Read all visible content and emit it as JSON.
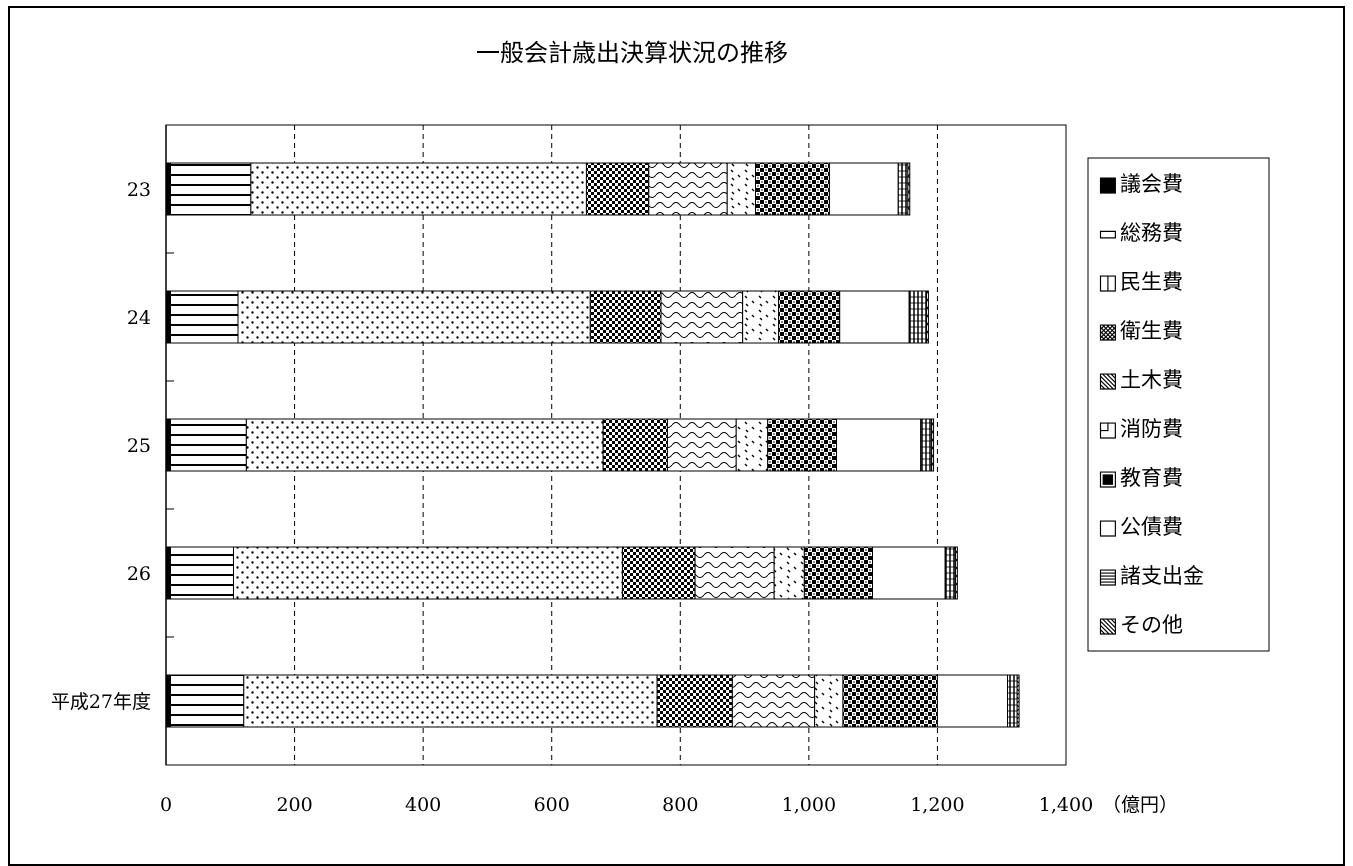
{
  "chart_data": {
    "type": "bar",
    "orientation": "horizontal",
    "stacked": true,
    "title": "一般会計歳出決算状況の推移",
    "xunit": "（億円）",
    "xlim": [
      0,
      1400
    ],
    "xticks": [
      "0",
      "200",
      "400",
      "600",
      "800",
      "1,000",
      "1,200",
      "1,400"
    ],
    "xtick_values": [
      0,
      200,
      400,
      600,
      800,
      1000,
      1200,
      1400
    ],
    "grid": "vertical dashed",
    "legend_position": "right",
    "categories": [
      "23",
      "24",
      "25",
      "26",
      "平成27年度"
    ],
    "series": [
      {
        "name": "議会費",
        "pattern": "solid",
        "values": [
          7,
          7,
          7,
          7,
          7
        ]
      },
      {
        "name": "総務費",
        "pattern": "hlines",
        "values": [
          125,
          105,
          118,
          98,
          114
        ]
      },
      {
        "name": "民生費",
        "pattern": "dots",
        "values": [
          522,
          548,
          555,
          605,
          643
        ]
      },
      {
        "name": "衛生費",
        "pattern": "checker",
        "values": [
          97,
          110,
          100,
          113,
          117
        ]
      },
      {
        "name": "土木費",
        "pattern": "wave",
        "values": [
          122,
          127,
          107,
          123,
          128
        ]
      },
      {
        "name": "消防費",
        "pattern": "sparse",
        "values": [
          44,
          56,
          49,
          47,
          44
        ]
      },
      {
        "name": "教育費",
        "pattern": "checker2",
        "values": [
          115,
          95,
          107,
          106,
          147
        ]
      },
      {
        "name": "公債費",
        "pattern": "blank",
        "values": [
          107,
          108,
          131,
          113,
          109
        ]
      },
      {
        "name": "諸支出金",
        "pattern": "vlines",
        "values": [
          15,
          27,
          17,
          16,
          15
        ]
      },
      {
        "name": "その他",
        "pattern": "zigzag",
        "values": [
          3,
          3,
          3,
          3,
          3
        ]
      }
    ]
  },
  "legend_items": [
    {
      "marker": "■",
      "label": "議会費"
    },
    {
      "marker": "▭",
      "label": "総務費"
    },
    {
      "marker": "◫",
      "label": "民生費"
    },
    {
      "marker": "▩",
      "label": "衛生費"
    },
    {
      "marker": "▧",
      "label": "土木費"
    },
    {
      "marker": "◰",
      "label": "消防費"
    },
    {
      "marker": "▣",
      "label": "教育費"
    },
    {
      "marker": "□",
      "label": "公債費"
    },
    {
      "marker": "▤",
      "label": "諸支出金"
    },
    {
      "marker": "▧",
      "label": "その他"
    }
  ]
}
